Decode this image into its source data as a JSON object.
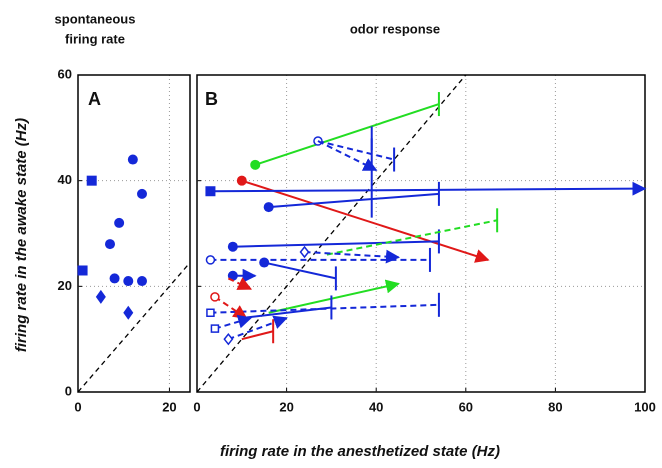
{
  "chart_data": [
    {
      "type": "scatter",
      "title": [
        "spontaneous",
        "firing rate"
      ],
      "panel": "A",
      "xlim": [
        0,
        24.5
      ],
      "ylim": [
        0,
        60
      ],
      "xticks": [
        0,
        20
      ],
      "yticks": [
        0,
        20,
        40,
        60
      ],
      "grid": true,
      "diagonal": true,
      "y_label": "firing rate in the awake state (Hz)",
      "x_label": "firing rate in the anesthetized state (Hz)",
      "series": [
        {
          "marker": "square",
          "color": "#1428d8",
          "x": [
            3,
            1
          ],
          "values": [
            40,
            23
          ]
        },
        {
          "marker": "circle",
          "color": "#1428d8",
          "x": [
            12,
            14,
            9,
            7,
            8,
            11,
            14
          ],
          "values": [
            44,
            37.5,
            32,
            28,
            21.5,
            21,
            21
          ]
        },
        {
          "marker": "diamond",
          "color": "#1428d8",
          "x": [
            5,
            11
          ],
          "values": [
            18,
            15
          ]
        }
      ]
    },
    {
      "type": "arrow",
      "title": "odor response",
      "panel": "B",
      "xlim": [
        0,
        100
      ],
      "ylim": [
        0,
        60
      ],
      "xticks": [
        0,
        20,
        40,
        60,
        80,
        100
      ],
      "yticks": [
        0,
        20,
        40,
        60
      ],
      "grid": true,
      "diagonal": true,
      "series": [
        {
          "color": "#22dd22",
          "style": "solid",
          "marker": "circle",
          "end": "bar",
          "x": [
            13,
            54
          ],
          "values": [
            43,
            54.5
          ]
        },
        {
          "color": "#1428d8",
          "style": "dashed",
          "marker": "open-circle",
          "end": "bar",
          "x": [
            27,
            44
          ],
          "values": [
            47.5,
            44
          ]
        },
        {
          "color": "#1428d8",
          "style": "dashed",
          "marker": "none",
          "end": "arrow",
          "x": [
            27,
            40
          ],
          "values": [
            47.5,
            42
          ]
        },
        {
          "color": "#1428d8",
          "style": "solid",
          "marker": "none",
          "end": "bar",
          "x": [
            39,
            39
          ],
          "values": [
            33,
            48
          ]
        },
        {
          "color": "#e01818",
          "style": "solid",
          "marker": "circle",
          "end": "arrow",
          "x": [
            10,
            65
          ],
          "values": [
            40,
            25
          ]
        },
        {
          "color": "#1428d8",
          "style": "solid",
          "marker": "square",
          "end": "arrow",
          "x": [
            3,
            100
          ],
          "values": [
            38,
            38.5
          ]
        },
        {
          "color": "#1428d8",
          "style": "solid",
          "marker": "circle",
          "end": "bar",
          "x": [
            16,
            54
          ],
          "values": [
            35,
            37.5
          ]
        },
        {
          "color": "#1428d8",
          "style": "solid",
          "marker": "circle",
          "end": "bar",
          "x": [
            8,
            54
          ],
          "values": [
            27.5,
            28.5
          ]
        },
        {
          "color": "#22dd22",
          "style": "dashed",
          "marker": "none",
          "end": "bar",
          "x": [
            29,
            67
          ],
          "values": [
            26,
            32.5
          ]
        },
        {
          "color": "#1428d8",
          "style": "dashed",
          "marker": "open-circle",
          "end": "bar",
          "x": [
            3,
            52
          ],
          "values": [
            25,
            25
          ]
        },
        {
          "color": "#1428d8",
          "style": "dashed",
          "marker": "open-diamond",
          "end": "arrow",
          "x": [
            24,
            45
          ],
          "values": [
            26.5,
            25.5
          ]
        },
        {
          "color": "#1428d8",
          "style": "solid",
          "marker": "circle",
          "end": "bar",
          "x": [
            15,
            31
          ],
          "values": [
            24.5,
            21.5
          ]
        },
        {
          "color": "#1428d8",
          "style": "solid",
          "marker": "circle",
          "end": "arrow",
          "x": [
            8,
            13
          ],
          "values": [
            22,
            22
          ]
        },
        {
          "color": "#e01818",
          "style": "dashed",
          "marker": "none",
          "end": "arrow",
          "x": [
            7,
            12
          ],
          "values": [
            21.5,
            19.5
          ]
        },
        {
          "color": "#22dd22",
          "style": "solid",
          "marker": "none",
          "end": "arrow",
          "x": [
            16,
            45
          ],
          "values": [
            15,
            20.5
          ]
        },
        {
          "color": "#1428d8",
          "style": "dashed",
          "marker": "open-square",
          "end": "bar",
          "x": [
            3,
            54
          ],
          "values": [
            15,
            16.5
          ]
        },
        {
          "color": "#1428d8",
          "style": "solid",
          "marker": "none",
          "end": "bar",
          "x": [
            10,
            30
          ],
          "values": [
            14,
            16
          ]
        },
        {
          "color": "#e01818",
          "style": "dashed",
          "marker": "open-circle",
          "end": "arrow",
          "x": [
            4,
            11
          ],
          "values": [
            18,
            14
          ]
        },
        {
          "color": "#e01818",
          "style": "solid",
          "marker": "none",
          "end": "bar",
          "x": [
            10,
            17
          ],
          "values": [
            10,
            11.5
          ]
        },
        {
          "color": "#1428d8",
          "style": "dashed",
          "marker": "open-diamond",
          "end": "arrow",
          "x": [
            7,
            20
          ],
          "values": [
            10,
            14
          ]
        },
        {
          "color": "#1428d8",
          "style": "dashed",
          "marker": "open-square",
          "end": "arrow",
          "x": [
            4,
            12
          ],
          "values": [
            12,
            14
          ]
        }
      ]
    }
  ]
}
